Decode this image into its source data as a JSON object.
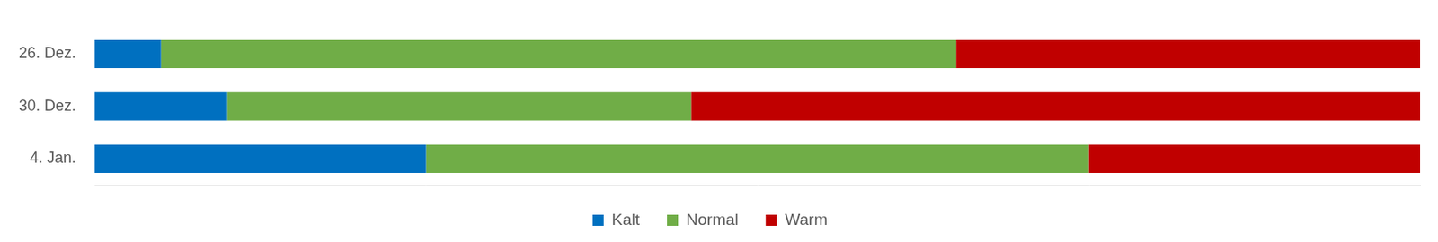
{
  "chart_data": {
    "type": "bar",
    "orientation": "horizontal",
    "stacked": true,
    "categories": [
      "26. Dez.",
      "30. Dez.",
      "4. Jan."
    ],
    "series": [
      {
        "name": "Kalt",
        "color": "#0070C0",
        "values": [
          5,
          10,
          25
        ]
      },
      {
        "name": "Normal",
        "color": "#70AD47",
        "values": [
          60,
          35,
          50
        ]
      },
      {
        "name": "Warm",
        "color": "#C00000",
        "values": [
          35,
          55,
          25
        ]
      }
    ],
    "xlim": [
      0,
      100
    ],
    "grid": false,
    "legend": "bottom",
    "tick_labels": "y"
  }
}
